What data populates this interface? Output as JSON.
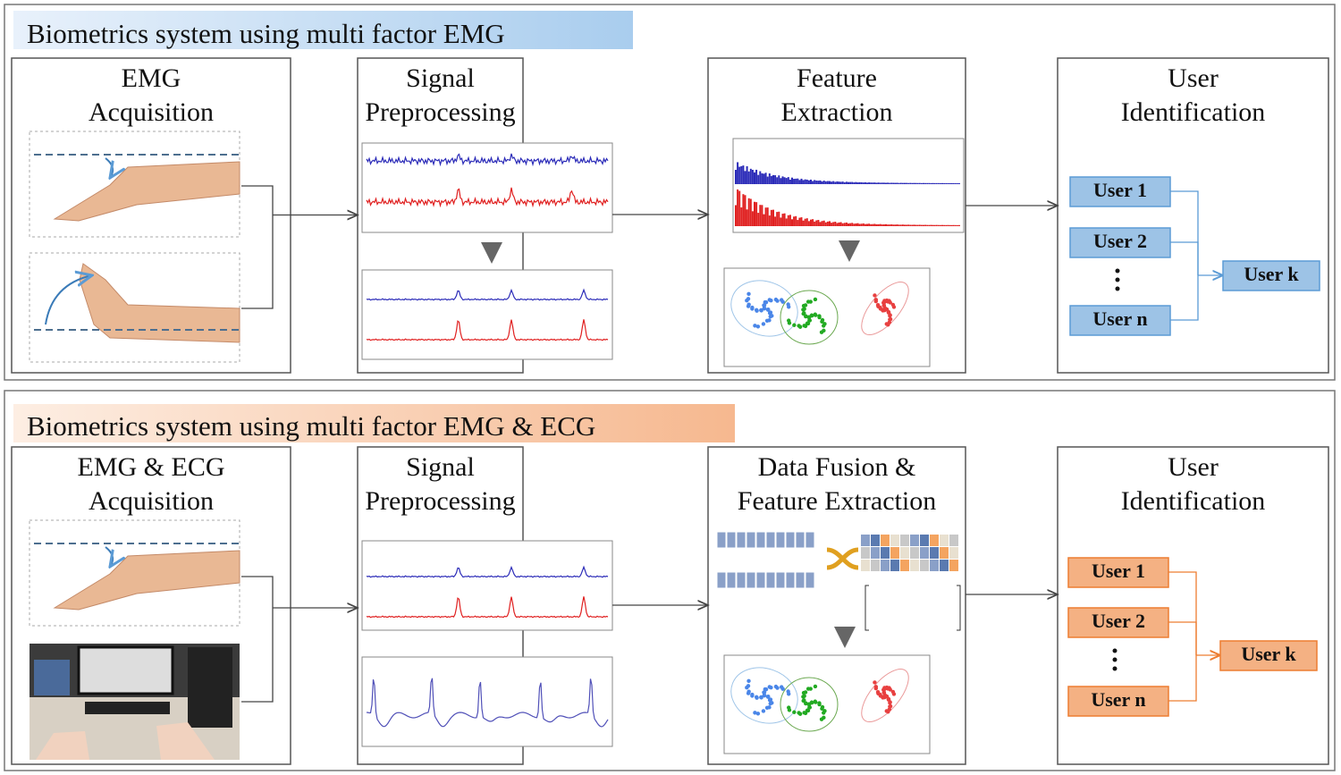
{
  "panels": [
    {
      "title": "Biometrics system using multi factor EMG",
      "stages": [
        {
          "title": [
            "EMG",
            "Acquisition"
          ]
        },
        {
          "title": [
            "Signal",
            "Preprocessing"
          ]
        },
        {
          "title": [
            "Feature",
            "Extraction"
          ]
        },
        {
          "title": [
            "User",
            "Identification"
          ]
        }
      ],
      "users": [
        "User 1",
        "User 2",
        "User n",
        "User k"
      ]
    },
    {
      "title": "Biometrics system using multi factor EMG & ECG",
      "stages": [
        {
          "title": [
            "EMG & ECG",
            "Acquisition"
          ]
        },
        {
          "title": [
            "Signal",
            "Preprocessing"
          ]
        },
        {
          "title": [
            "Data Fusion &",
            "Feature Extraction"
          ]
        },
        {
          "title": [
            "User",
            "Identification"
          ]
        }
      ],
      "users": [
        "User 1",
        "User 2",
        "User n",
        "User k"
      ]
    }
  ]
}
